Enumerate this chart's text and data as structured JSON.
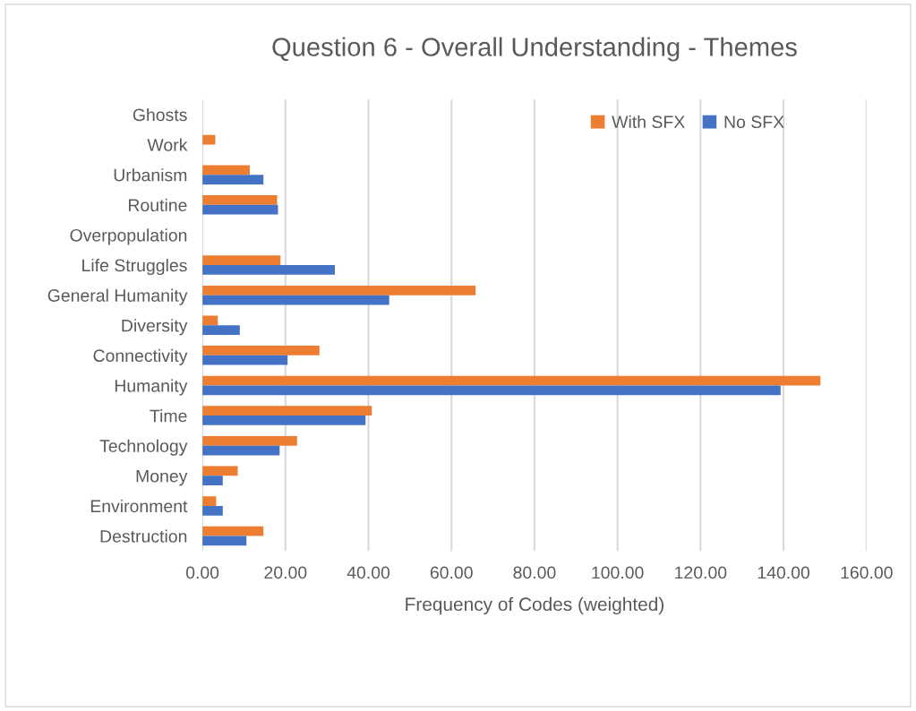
{
  "chart_data": {
    "type": "bar",
    "orientation": "horizontal",
    "title": "Question 6 - Overall Understanding - Themes",
    "xlabel": "Frequency of Codes (weighted)",
    "categories": [
      "Ghosts",
      "Work",
      "Urbanism",
      "Routine",
      "Overpopulation",
      "Life Struggles",
      "General Humanity",
      "Diversity",
      "Connectivity",
      "Humanity",
      "Time",
      "Technology",
      "Money",
      "Environment",
      "Destruction"
    ],
    "series": [
      {
        "name": "With SFX",
        "color": "#ed7d31",
        "values": [
          0,
          3.1,
          11.4,
          18.0,
          0,
          18.8,
          65.8,
          3.7,
          28.2,
          148.9,
          40.8,
          22.8,
          8.5,
          3.3,
          14.7
        ]
      },
      {
        "name": "No SFX",
        "color": "#4472c4",
        "values": [
          0,
          0,
          14.7,
          18.2,
          0,
          31.9,
          45.0,
          9.0,
          20.5,
          139.3,
          39.3,
          18.6,
          4.9,
          4.9,
          10.6
        ]
      }
    ],
    "xlim": [
      0,
      160
    ],
    "xticks": [
      {
        "value": 0,
        "label": "0.00"
      },
      {
        "value": 20,
        "label": "20.00"
      },
      {
        "value": 40,
        "label": "40.00"
      },
      {
        "value": 60,
        "label": "60.00"
      },
      {
        "value": 80,
        "label": "80.00"
      },
      {
        "value": 100,
        "label": "100.00"
      },
      {
        "value": 120,
        "label": "120.00"
      },
      {
        "value": 140,
        "label": "140.00"
      },
      {
        "value": 160,
        "label": "160.00"
      }
    ],
    "grid": "x",
    "legend": "top right"
  }
}
